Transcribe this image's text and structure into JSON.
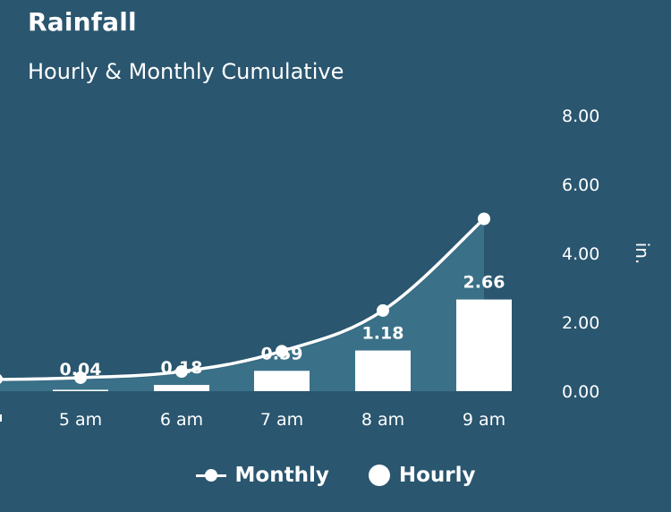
{
  "chart_data": {
    "type": "bar",
    "title": "Rainfall",
    "subtitle": "Hourly & Monthly Cumulative",
    "categories": [
      "5 am",
      "6 am",
      "7 am",
      "8 am",
      "9 am"
    ],
    "y_ticks": [
      "0.00",
      "2.00",
      "4.00",
      "6.00",
      "8.00"
    ],
    "ylabel": "in.",
    "ylim": [
      0,
      8
    ],
    "y_axis_side": "right",
    "series": [
      {
        "name": "Hourly",
        "type": "bar",
        "values": [
          0.04,
          0.18,
          0.59,
          1.18,
          2.66
        ],
        "labels": [
          "0.04",
          "0.18",
          "0.59",
          "1.18",
          "2.66"
        ],
        "color": "#ffffff"
      },
      {
        "name": "Monthly",
        "type": "area-line",
        "values": [
          0.39,
          0.57,
          1.16,
          2.34,
          5.0
        ],
        "color": "#ffffff",
        "fill": "#3a7189"
      }
    ],
    "legend": {
      "position": "bottom",
      "items": [
        "Monthly",
        "Hourly"
      ]
    },
    "grid": false
  }
}
